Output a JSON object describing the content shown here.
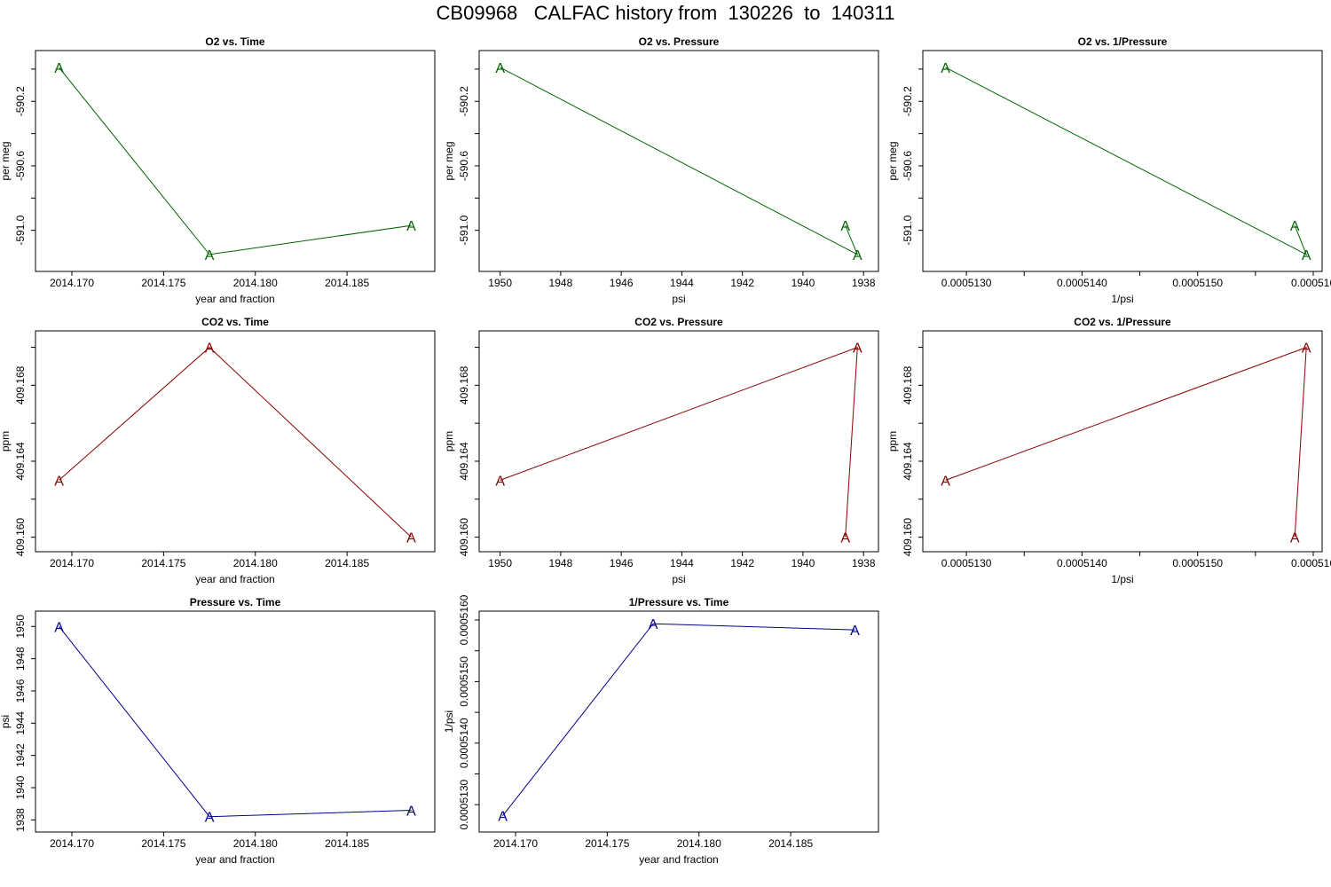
{
  "page": {
    "title": "CB09968   CALFAC history from  130226  to  140311"
  },
  "colors": {
    "o2": "#006400",
    "co2": "#8b0000",
    "pressure": "#00008b",
    "axis": "#000000"
  },
  "chart_data": [
    {
      "type": "line",
      "title": "O2 vs. Time",
      "xlabel": "year and fraction",
      "ylabel": "per meg",
      "color_key": "o2",
      "x": [
        2014.1693,
        2014.1775,
        2014.1885
      ],
      "y": [
        -589.99,
        -591.15,
        -590.97
      ],
      "point_label": "A",
      "xlim": [
        2014.1685,
        2014.1893
      ],
      "ylim": [
        -591.2,
        -589.94
      ],
      "xticks": [
        2014.17,
        2014.175,
        2014.18,
        2014.185
      ],
      "xtick_labels": [
        "2014.170",
        "2014.175",
        "2014.180",
        "2014.185"
      ],
      "yticks": [
        -590.0,
        -590.2,
        -590.4,
        -590.6,
        -590.8,
        -591.0
      ],
      "ytick_labels": [
        "",
        "-590.2",
        "",
        "-590.6",
        "",
        "-591.0"
      ],
      "y_reversed": false,
      "x_reversed": false
    },
    {
      "type": "line",
      "title": "O2 vs. Pressure",
      "xlabel": "psi",
      "ylabel": "per meg",
      "color_key": "o2",
      "x": [
        1950.0,
        1938.2,
        1938.6
      ],
      "y": [
        -589.99,
        -591.15,
        -590.97
      ],
      "point_label": "A",
      "xlim": [
        1950.4,
        1937.8
      ],
      "ylim": [
        -591.2,
        -589.94
      ],
      "xticks": [
        1950,
        1948,
        1946,
        1944,
        1942,
        1940,
        1938
      ],
      "xtick_labels": [
        "1950",
        "1948",
        "1946",
        "1944",
        "1942",
        "1940",
        "1938"
      ],
      "yticks": [
        -590.0,
        -590.2,
        -590.4,
        -590.6,
        -590.8,
        -591.0
      ],
      "ytick_labels": [
        "",
        "-590.2",
        "",
        "-590.6",
        "",
        "-591.0"
      ]
    },
    {
      "type": "line",
      "title": "O2 vs. 1/Pressure",
      "xlabel": "1/psi",
      "ylabel": "per meg",
      "color_key": "o2",
      "x": [
        0.00051282,
        0.00051594,
        0.00051584
      ],
      "y": [
        -589.99,
        -591.15,
        -590.97
      ],
      "point_label": "A",
      "xlim": [
        0.0005127,
        0.000516
      ],
      "ylim": [
        -591.2,
        -589.94
      ],
      "xticks": [
        0.000513,
        0.0005135,
        0.000514,
        0.0005145,
        0.000515,
        0.0005155,
        0.000516
      ],
      "xtick_labels": [
        "0.0005130",
        "",
        "0.0005140",
        "",
        "0.0005150",
        "",
        "0.000516"
      ],
      "yticks": [
        -590.0,
        -590.2,
        -590.4,
        -590.6,
        -590.8,
        -591.0
      ],
      "ytick_labels": [
        "",
        "-590.2",
        "",
        "-590.6",
        "",
        "-591.0"
      ]
    },
    {
      "type": "line",
      "title": "CO2 vs. Time",
      "xlabel": "year and fraction",
      "ylabel": "ppm",
      "color_key": "co2",
      "x": [
        2014.1693,
        2014.1775,
        2014.1885
      ],
      "y": [
        409.163,
        409.17,
        409.16
      ],
      "point_label": "A",
      "xlim": [
        2014.1685,
        2014.1893
      ],
      "ylim": [
        409.1597,
        409.1704
      ],
      "xticks": [
        2014.17,
        2014.175,
        2014.18,
        2014.185
      ],
      "xtick_labels": [
        "2014.170",
        "2014.175",
        "2014.180",
        "2014.185"
      ],
      "yticks": [
        409.16,
        409.162,
        409.164,
        409.166,
        409.168,
        409.17
      ],
      "ytick_labels": [
        "409.160",
        "",
        "409.164",
        "",
        "409.168",
        ""
      ]
    },
    {
      "type": "line",
      "title": "CO2 vs. Pressure",
      "xlabel": "psi",
      "ylabel": "ppm",
      "color_key": "co2",
      "x": [
        1950.0,
        1938.2,
        1938.6
      ],
      "y": [
        409.163,
        409.17,
        409.16
      ],
      "point_label": "A",
      "xlim": [
        1950.4,
        1937.8
      ],
      "ylim": [
        409.1597,
        409.1704
      ],
      "xticks": [
        1950,
        1948,
        1946,
        1944,
        1942,
        1940,
        1938
      ],
      "xtick_labels": [
        "1950",
        "1948",
        "1946",
        "1944",
        "1942",
        "1940",
        "1938"
      ],
      "yticks": [
        409.16,
        409.162,
        409.164,
        409.166,
        409.168,
        409.17
      ],
      "ytick_labels": [
        "409.160",
        "",
        "409.164",
        "",
        "409.168",
        ""
      ]
    },
    {
      "type": "line",
      "title": "CO2 vs. 1/Pressure",
      "xlabel": "1/psi",
      "ylabel": "ppm",
      "color_key": "co2",
      "x": [
        0.00051282,
        0.00051594,
        0.00051584
      ],
      "y": [
        409.163,
        409.17,
        409.16
      ],
      "point_label": "A",
      "xlim": [
        0.0005127,
        0.000516
      ],
      "ylim": [
        409.1597,
        409.1704
      ],
      "xticks": [
        0.000513,
        0.0005135,
        0.000514,
        0.0005145,
        0.000515,
        0.0005155,
        0.000516
      ],
      "xtick_labels": [
        "0.0005130",
        "",
        "0.0005140",
        "",
        "0.0005150",
        "",
        "0.000516"
      ],
      "yticks": [
        409.16,
        409.162,
        409.164,
        409.166,
        409.168,
        409.17
      ],
      "ytick_labels": [
        "409.160",
        "",
        "409.164",
        "",
        "409.168",
        ""
      ]
    },
    {
      "type": "line",
      "title": "Pressure vs. Time",
      "xlabel": "year and fraction",
      "ylabel": "psi",
      "color_key": "pressure",
      "x": [
        2014.1693,
        2014.1775,
        2014.1885
      ],
      "y": [
        1950.0,
        1938.2,
        1938.6
      ],
      "point_label": "A",
      "xlim": [
        2014.1685,
        2014.1893
      ],
      "ylim": [
        1937.8,
        1950.4
      ],
      "xticks": [
        2014.17,
        2014.175,
        2014.18,
        2014.185
      ],
      "xtick_labels": [
        "2014.170",
        "2014.175",
        "2014.180",
        "2014.185"
      ],
      "yticks": [
        1938,
        1940,
        1942,
        1944,
        1946,
        1948,
        1950
      ],
      "ytick_labels": [
        "1938",
        "1940",
        "1942",
        "1944",
        "1946",
        "1948",
        "1950"
      ]
    },
    {
      "type": "line",
      "title": "1/Pressure vs. Time",
      "xlabel": "year and fraction",
      "ylabel": "1/psi",
      "color_key": "pressure",
      "x": [
        2014.1693,
        2014.1775,
        2014.1885
      ],
      "y": [
        0.00051282,
        0.00051594,
        0.00051584
      ],
      "point_label": "A",
      "xlim": [
        2014.1685,
        2014.1893
      ],
      "ylim": [
        0.0005127,
        0.000516
      ],
      "xticks": [
        2014.17,
        2014.175,
        2014.18,
        2014.185
      ],
      "xtick_labels": [
        "2014.170",
        "2014.175",
        "2014.180",
        "2014.185"
      ],
      "yticks": [
        0.000513,
        0.0005135,
        0.000514,
        0.0005145,
        0.000515,
        0.0005155,
        0.000516
      ],
      "ytick_labels": [
        "0.0005130",
        "",
        "0.0005140",
        "",
        "0.0005150",
        "",
        "0.0005160"
      ]
    }
  ]
}
